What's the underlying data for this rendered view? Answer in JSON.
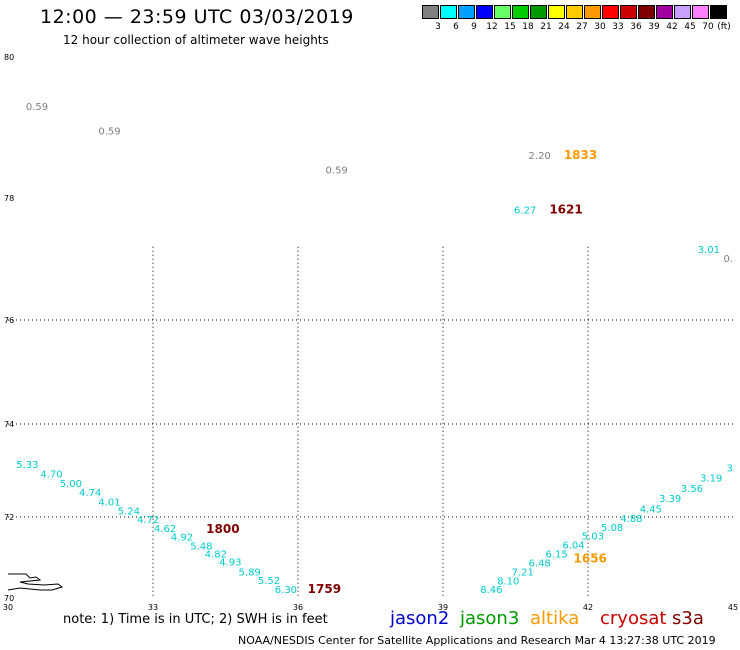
{
  "header": {
    "title": "12:00 — 23:59 UTC 03/03/2019",
    "subtitle": "12 hour collection of altimeter wave heights"
  },
  "legend": {
    "unit": "(ft)",
    "bins": [
      {
        "label": "3",
        "color": "#808080"
      },
      {
        "label": "6",
        "color": "#00ffff"
      },
      {
        "label": "9",
        "color": "#00a0ff"
      },
      {
        "label": "12",
        "color": "#0000ff"
      },
      {
        "label": "15",
        "color": "#66ff66"
      },
      {
        "label": "18",
        "color": "#00cc00"
      },
      {
        "label": "21",
        "color": "#009900"
      },
      {
        "label": "24",
        "color": "#ffff00"
      },
      {
        "label": "27",
        "color": "#ffcc00"
      },
      {
        "label": "30",
        "color": "#ff9900"
      },
      {
        "label": "33",
        "color": "#ff0000"
      },
      {
        "label": "36",
        "color": "#cc0000"
      },
      {
        "label": "39",
        "color": "#800000"
      },
      {
        "label": "42",
        "color": "#a000a0"
      },
      {
        "label": "45",
        "color": "#c8a0ff"
      },
      {
        "label": "70",
        "color": "#ff80ff"
      },
      {
        "label": "",
        "color": "#000000"
      }
    ]
  },
  "axes": {
    "lat_labels": [
      "80",
      "78",
      "76",
      "74",
      "72",
      "70"
    ],
    "lon_labels": [
      "30",
      "33",
      "36",
      "39",
      "42",
      "45"
    ],
    "lat_values": [
      80,
      78,
      76,
      74,
      72,
      70
    ],
    "lon_values": [
      30,
      33,
      36,
      39,
      42,
      45
    ]
  },
  "observations": [
    {
      "text": "0.59",
      "lon": 30.6,
      "lat": 79.25,
      "color": "#808080"
    },
    {
      "text": "0.59",
      "lon": 32.1,
      "lat": 78.9,
      "color": "#808080"
    },
    {
      "text": "0.59",
      "lon": 36.8,
      "lat": 78.35,
      "color": "#808080"
    },
    {
      "text": "2.20",
      "lon": 41.0,
      "lat": 78.55,
      "color": "#808080"
    },
    {
      "text": "6.27",
      "lon": 40.7,
      "lat": 77.75,
      "color": "#00cccc"
    },
    {
      "text": "3.01",
      "lon": 44.5,
      "lat": 77.1,
      "color": "#00cccc"
    },
    {
      "text": "0.",
      "lon": 45.0,
      "lat": 76.95,
      "color": "#808080"
    },
    {
      "text": "5.33",
      "lon": 30.4,
      "lat": 73.05,
      "color": "#00cccc"
    },
    {
      "text": "4.70",
      "lon": 30.9,
      "lat": 72.85,
      "color": "#00cccc"
    },
    {
      "text": "5.00",
      "lon": 31.3,
      "lat": 72.65,
      "color": "#00cccc"
    },
    {
      "text": "4.74",
      "lon": 31.7,
      "lat": 72.45,
      "color": "#00cccc"
    },
    {
      "text": "4.01",
      "lon": 32.1,
      "lat": 72.25,
      "color": "#00cccc"
    },
    {
      "text": "5.24",
      "lon": 32.5,
      "lat": 72.05,
      "color": "#00cccc"
    },
    {
      "text": "4.72",
      "lon": 32.9,
      "lat": 71.85,
      "color": "#00cccc"
    },
    {
      "text": "4.62",
      "lon": 33.25,
      "lat": 71.63,
      "color": "#00cccc"
    },
    {
      "text": "4.92",
      "lon": 33.6,
      "lat": 71.42,
      "color": "#00cccc"
    },
    {
      "text": "5.48",
      "lon": 34.0,
      "lat": 71.2,
      "color": "#00cccc"
    },
    {
      "text": "4.82",
      "lon": 34.3,
      "lat": 71.0,
      "color": "#00cccc"
    },
    {
      "text": "4.93",
      "lon": 34.6,
      "lat": 70.8,
      "color": "#00cccc"
    },
    {
      "text": "5.89",
      "lon": 35.0,
      "lat": 70.56,
      "color": "#00cccc"
    },
    {
      "text": "5.52",
      "lon": 35.4,
      "lat": 70.34,
      "color": "#00cccc"
    },
    {
      "text": "6.30",
      "lon": 35.75,
      "lat": 70.12,
      "color": "#00cccc"
    },
    {
      "text": "8.46",
      "lon": 40.0,
      "lat": 70.12,
      "color": "#00cccc"
    },
    {
      "text": "8.10",
      "lon": 40.35,
      "lat": 70.33,
      "color": "#00cccc"
    },
    {
      "text": "7.21",
      "lon": 40.65,
      "lat": 70.55,
      "color": "#00cccc"
    },
    {
      "text": "6.48",
      "lon": 41.0,
      "lat": 70.78,
      "color": "#00cccc"
    },
    {
      "text": "6.15",
      "lon": 41.35,
      "lat": 71.0,
      "color": "#00cccc"
    },
    {
      "text": "6.04",
      "lon": 41.7,
      "lat": 71.22,
      "color": "#00cccc"
    },
    {
      "text": "5.03",
      "lon": 42.1,
      "lat": 71.44,
      "color": "#00cccc"
    },
    {
      "text": "5.08",
      "lon": 42.5,
      "lat": 71.66,
      "color": "#00cccc"
    },
    {
      "text": "4.88",
      "lon": 42.9,
      "lat": 71.88,
      "color": "#00cccc"
    },
    {
      "text": "4.45",
      "lon": 43.3,
      "lat": 72.1,
      "color": "#00cccc"
    },
    {
      "text": "3.39",
      "lon": 43.7,
      "lat": 72.32,
      "color": "#00cccc"
    },
    {
      "text": "3.56",
      "lon": 44.15,
      "lat": 72.54,
      "color": "#00cccc"
    },
    {
      "text": "3.19",
      "lon": 44.55,
      "lat": 72.76,
      "color": "#00cccc"
    },
    {
      "text": "3",
      "lon": 45.0,
      "lat": 72.98,
      "color": "#00cccc"
    }
  ],
  "time_labels": [
    {
      "text": "1833",
      "lon": 41.5,
      "lat": 78.55,
      "color": "#ff9900"
    },
    {
      "text": "1621",
      "lon": 41.2,
      "lat": 77.75,
      "color": "#800000"
    },
    {
      "text": "1800",
      "lon": 34.1,
      "lat": 71.6,
      "color": "#800000"
    },
    {
      "text": "1759",
      "lon": 36.2,
      "lat": 70.12,
      "color": "#800000"
    },
    {
      "text": "1656",
      "lon": 41.7,
      "lat": 70.88,
      "color": "#ff9900"
    }
  ],
  "footer": {
    "note": "note: 1) Time is in UTC; 2) SWH is in feet",
    "satellites": [
      {
        "name": "jason2",
        "color": "#0000cc"
      },
      {
        "name": "jason3",
        "color": "#009900"
      },
      {
        "name": "altika",
        "color": "#ff9900"
      },
      {
        "name": "cryosat",
        "color": "#cc0000"
      },
      {
        "name": "s3a",
        "color": "#800000"
      }
    ],
    "credit": "NOAA/NESDIS Center for Satellite Applications and Research    Mar  4 13:27:38 UTC 2019"
  }
}
